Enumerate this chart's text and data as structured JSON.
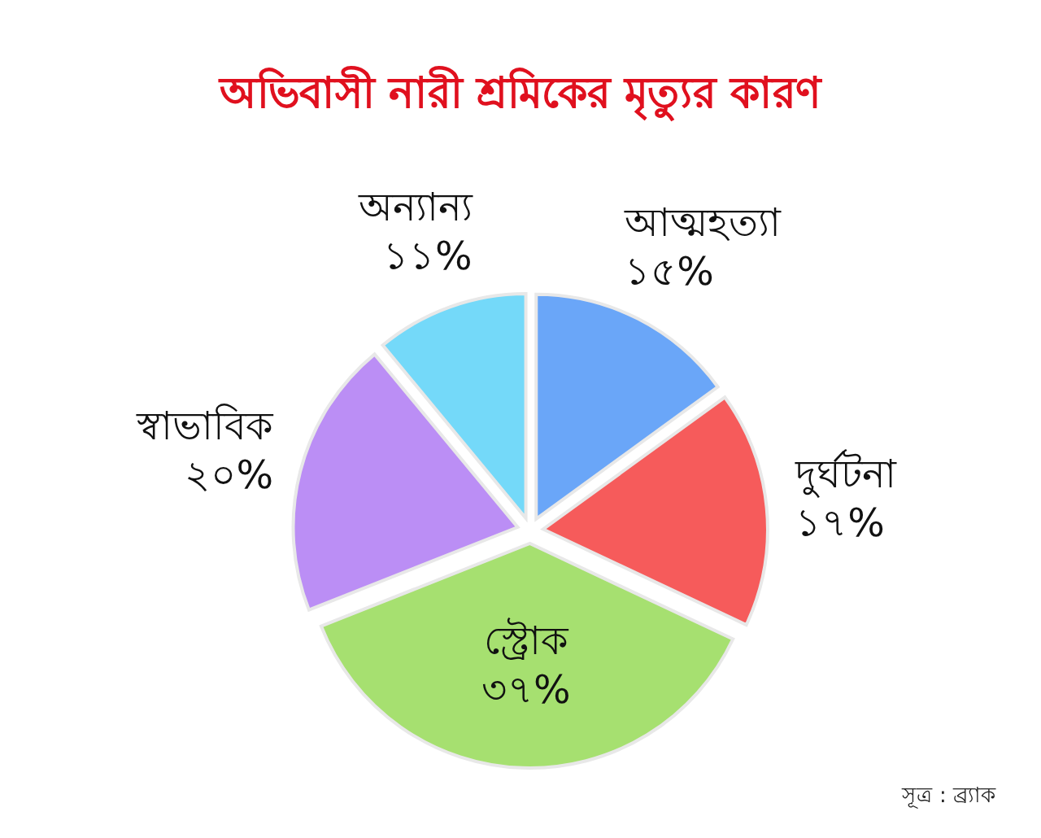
{
  "chart_data": {
    "type": "pie",
    "title": "অভিবাসী নারী শ্রমিকের মৃত্যুর কারণ",
    "categories": [
      "আত্মহত্যা",
      "দুর্ঘটনা",
      "স্ট্রোক",
      "স্বাভাবিক",
      "অন্যান্য"
    ],
    "values": [
      15,
      17,
      37,
      20,
      11
    ],
    "value_labels": [
      "১৫%",
      "১৭%",
      "৩৭%",
      "২০%",
      "১১%"
    ],
    "colors": [
      "#6aa6f8",
      "#f65b5b",
      "#a6e070",
      "#bb8ef5",
      "#74d9f9"
    ],
    "annotations": [
      "সূত্র : ব্র্যাক"
    ]
  }
}
